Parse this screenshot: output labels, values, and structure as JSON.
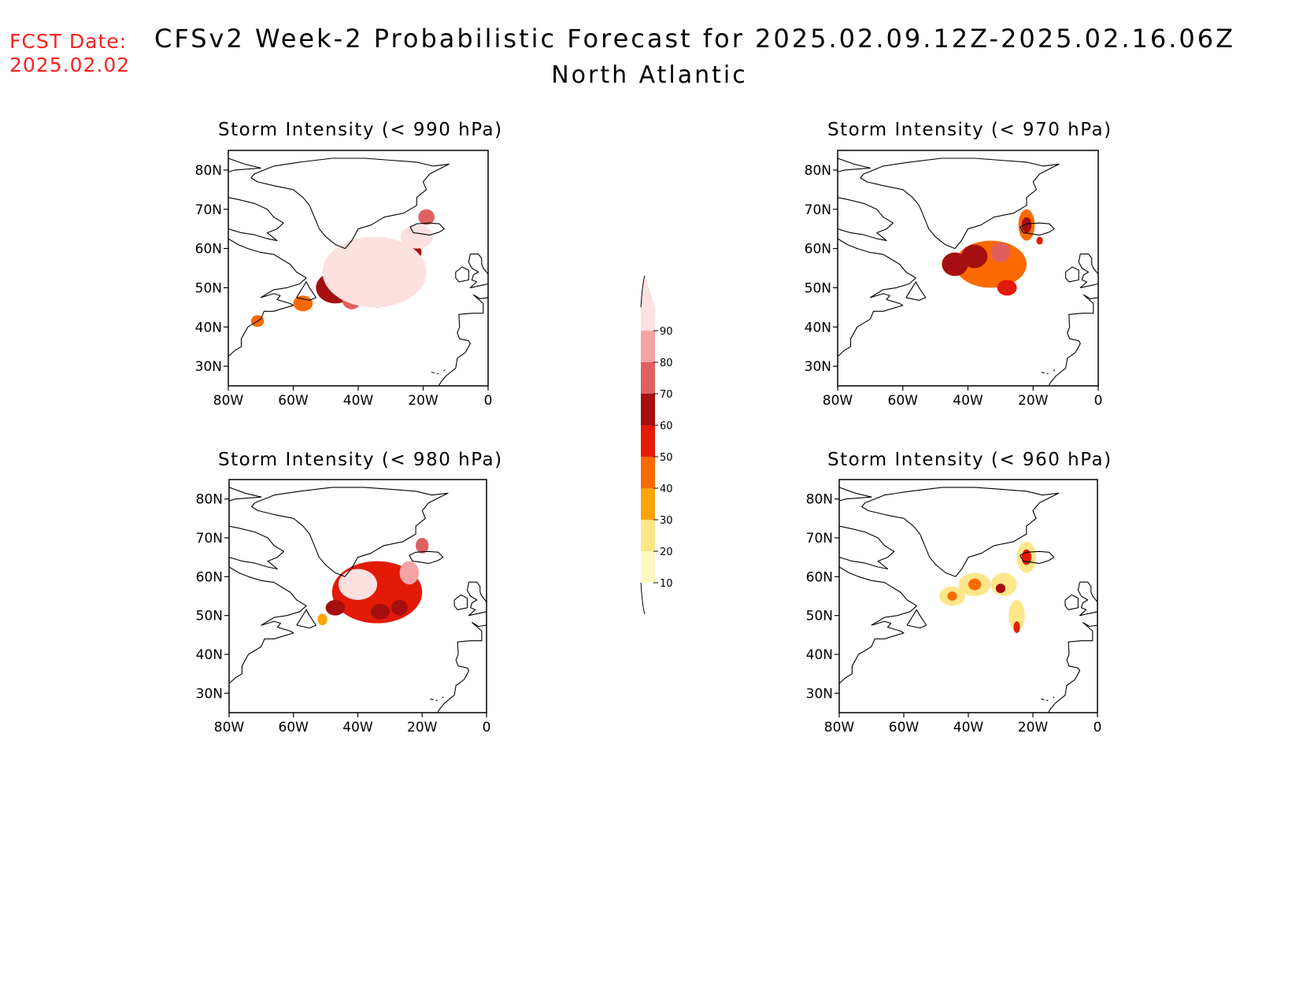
{
  "header": {
    "fcst_label": "FCST Date:",
    "fcst_date": "2025.02.02",
    "title": "CFSv2 Week-2 Probabilistic Forecast for 2025.02.09.12Z-2025.02.16.06Z",
    "subtitle": "North Atlantic"
  },
  "axes": {
    "lat_ticks": [
      "80N",
      "70N",
      "60N",
      "50N",
      "40N",
      "30N"
    ],
    "lon_ticks": [
      "80W",
      "60W",
      "40W",
      "20W",
      "0"
    ],
    "lat_range": [
      25,
      85
    ],
    "lon_range": [
      -80,
      0
    ]
  },
  "colorbar": {
    "levels": [
      "10",
      "20",
      "30",
      "40",
      "50",
      "60",
      "70",
      "80",
      "90"
    ],
    "colors": [
      "#fff9bf",
      "#fde68a",
      "#fca50a",
      "#fb6a00",
      "#e31a06",
      "#a50f0f",
      "#e06060",
      "#f4a4a4",
      "#fde0e0"
    ],
    "low_color": "#ffffff"
  },
  "panels": [
    {
      "id": "p990",
      "title": "Storm Intensity (< 990 hPa)",
      "blobs": [
        {
          "lon": -35,
          "lat": 54,
          "rx": 16,
          "ry": 9,
          "level": 8
        },
        {
          "lon": -22,
          "lat": 63,
          "rx": 5,
          "ry": 3,
          "level": 8
        },
        {
          "lon": -47,
          "lat": 50,
          "rx": 6,
          "ry": 4,
          "level": 5
        },
        {
          "lon": -42,
          "lat": 47,
          "rx": 3,
          "ry": 2.5,
          "level": 6
        },
        {
          "lon": -30,
          "lat": 55,
          "rx": 3,
          "ry": 3,
          "level": 5
        },
        {
          "lon": -23,
          "lat": 59,
          "rx": 2.5,
          "ry": 2,
          "level": 5
        },
        {
          "lon": -19,
          "lat": 68,
          "rx": 2.5,
          "ry": 2,
          "level": 6
        },
        {
          "lon": -34,
          "lat": 47,
          "rx": 2.5,
          "ry": 2,
          "level": 4
        },
        {
          "lon": -57,
          "lat": 46,
          "rx": 3,
          "ry": 2,
          "level": 3
        },
        {
          "lon": -71,
          "lat": 41.5,
          "rx": 2,
          "ry": 1.5,
          "level": 3
        }
      ]
    },
    {
      "id": "p970",
      "title": "Storm Intensity (< 970 hPa)",
      "blobs": [
        {
          "lon": -33,
          "lat": 56,
          "rx": 11,
          "ry": 6,
          "level": 3
        },
        {
          "lon": -22,
          "lat": 66,
          "rx": 2.5,
          "ry": 4,
          "level": 3
        },
        {
          "lon": -44,
          "lat": 56,
          "rx": 4,
          "ry": 3,
          "level": 5
        },
        {
          "lon": -38,
          "lat": 58,
          "rx": 4,
          "ry": 3,
          "level": 5
        },
        {
          "lon": -30,
          "lat": 59,
          "rx": 3,
          "ry": 2.5,
          "level": 6
        },
        {
          "lon": -28,
          "lat": 50,
          "rx": 3,
          "ry": 2,
          "level": 4
        },
        {
          "lon": -22,
          "lat": 66,
          "rx": 1.5,
          "ry": 2,
          "level": 5
        },
        {
          "lon": -18,
          "lat": 62,
          "rx": 1,
          "ry": 1,
          "level": 4
        }
      ]
    },
    {
      "id": "p980",
      "title": "Storm Intensity (< 980 hPa)",
      "blobs": [
        {
          "lon": -34,
          "lat": 56,
          "rx": 14,
          "ry": 8,
          "level": 4
        },
        {
          "lon": -40,
          "lat": 58,
          "rx": 6,
          "ry": 4,
          "level": 8
        },
        {
          "lon": -24,
          "lat": 61,
          "rx": 3,
          "ry": 3,
          "level": 7
        },
        {
          "lon": -20,
          "lat": 68,
          "rx": 2,
          "ry": 2,
          "level": 6
        },
        {
          "lon": -33,
          "lat": 51,
          "rx": 3,
          "ry": 2,
          "level": 5
        },
        {
          "lon": -27,
          "lat": 52,
          "rx": 2.5,
          "ry": 2,
          "level": 5
        },
        {
          "lon": -47,
          "lat": 52,
          "rx": 3,
          "ry": 2,
          "level": 5
        },
        {
          "lon": -51,
          "lat": 49,
          "rx": 1.5,
          "ry": 1.5,
          "level": 2
        }
      ]
    },
    {
      "id": "p960",
      "title": "Storm Intensity (< 960 hPa)",
      "blobs": [
        {
          "lon": -45,
          "lat": 55,
          "rx": 4,
          "ry": 2.5,
          "level": 1
        },
        {
          "lon": -38,
          "lat": 58,
          "rx": 5,
          "ry": 3,
          "level": 1
        },
        {
          "lon": -29,
          "lat": 58,
          "rx": 4,
          "ry": 3,
          "level": 1
        },
        {
          "lon": -25,
          "lat": 50,
          "rx": 2.5,
          "ry": 4,
          "level": 1
        },
        {
          "lon": -22,
          "lat": 65,
          "rx": 3,
          "ry": 4,
          "level": 1
        },
        {
          "lon": -45,
          "lat": 55,
          "rx": 1.5,
          "ry": 1.2,
          "level": 3
        },
        {
          "lon": -38,
          "lat": 58,
          "rx": 2,
          "ry": 1.5,
          "level": 3
        },
        {
          "lon": -30,
          "lat": 57,
          "rx": 1.5,
          "ry": 1.2,
          "level": 5
        },
        {
          "lon": -22,
          "lat": 65,
          "rx": 1.5,
          "ry": 2,
          "level": 4
        },
        {
          "lon": -25,
          "lat": 47,
          "rx": 1,
          "ry": 1.5,
          "level": 4
        }
      ]
    }
  ]
}
